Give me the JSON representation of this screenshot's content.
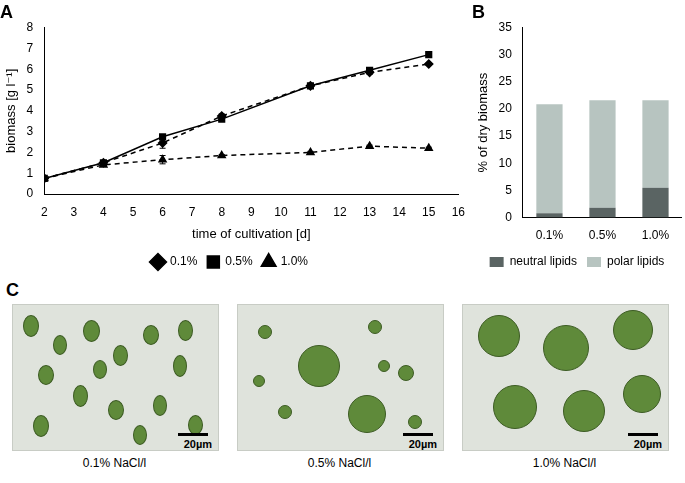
{
  "chart_data": [
    {
      "type": "line",
      "title": "A",
      "x_label": "time of cultivation [d]",
      "y_label": "biomass [g l⁻¹]",
      "x": [
        2,
        4,
        6,
        8,
        11,
        13,
        15
      ],
      "series": [
        {
          "name": "0.1%",
          "color": "#000000",
          "marker": "diamond",
          "line_style": "dashed",
          "values": [
            0.75,
            1.5,
            2.45,
            3.75,
            5.2,
            5.85,
            6.25
          ],
          "errors": [
            null,
            0.1,
            0.25,
            0.1,
            0.05,
            0.1,
            0.05
          ]
        },
        {
          "name": "0.5%",
          "color": "#000000",
          "marker": "square",
          "line_style": "solid",
          "values": [
            0.75,
            1.5,
            2.75,
            3.6,
            5.2,
            5.95,
            6.7
          ],
          "errors": [
            null,
            0.05,
            0.1,
            0.05,
            0.05,
            0.05,
            null
          ]
        },
        {
          "name": "1.0%",
          "color": "#000000",
          "marker": "triangle",
          "line_style": "dashed",
          "values": [
            0.75,
            1.4,
            1.65,
            1.85,
            2.0,
            2.3,
            2.2
          ],
          "errors": [
            null,
            0.05,
            0.2,
            0.05,
            0.05,
            0.05,
            0.05
          ]
        }
      ],
      "xlim": [
        2,
        16
      ],
      "xticks": [
        2,
        3,
        4,
        5,
        6,
        7,
        8,
        9,
        10,
        11,
        12,
        13,
        14,
        15,
        16
      ],
      "ylim": [
        0,
        8
      ],
      "yticks": [
        0,
        1,
        2,
        3,
        4,
        5,
        6,
        7,
        8
      ],
      "grid": false,
      "legend": "bottom"
    },
    {
      "type": "bar",
      "title": "B",
      "stacked": true,
      "y_label": "% of dry biomass",
      "categories": [
        "0.1%",
        "0.5%",
        "1.0%"
      ],
      "series": [
        {
          "name": "neutral lipids",
          "color": "#5a6463",
          "values": [
            0.8,
            1.8,
            5.5
          ]
        },
        {
          "name": "polar lipids",
          "color": "#b7c4c0",
          "values": [
            20.1,
            19.8,
            16.1
          ]
        }
      ],
      "ylim": [
        0,
        35
      ],
      "yticks": [
        0,
        5,
        10,
        15,
        20,
        25,
        30,
        35
      ],
      "grid": false,
      "legend": "bottom"
    }
  ],
  "images": {
    "label": "C",
    "panels": [
      {
        "caption": "0.1% NaCl/l",
        "scale_bar": "20µm"
      },
      {
        "caption": "0.5% NaCl/l",
        "scale_bar": "20µm"
      },
      {
        "caption": "1.0% NaCl/l",
        "scale_bar": "20µm"
      }
    ]
  }
}
